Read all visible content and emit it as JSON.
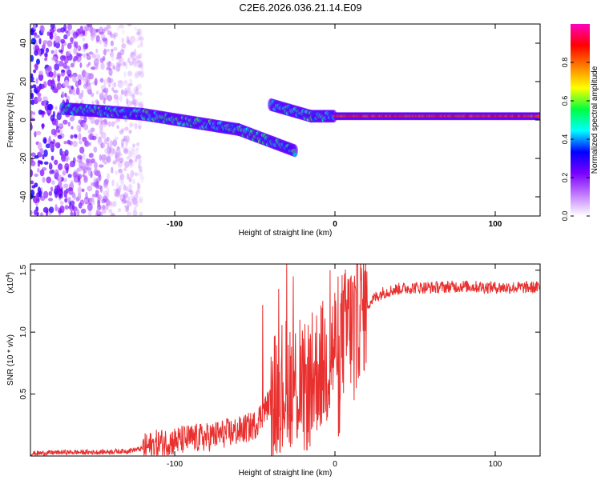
{
  "title": "C2E6.2026.036.21.14.E09",
  "chart_data": [
    {
      "type": "heatmap",
      "xlabel": "Height of straight line (km)",
      "ylabel": "Frequency (Hz)",
      "xlim": [
        -190,
        128
      ],
      "ylim": [
        -50,
        50
      ],
      "xticks": [
        -100,
        0,
        100
      ],
      "yticks": [
        -40,
        -20,
        0,
        20,
        40
      ],
      "colorbar": {
        "label": "Normalized spectral amplitude",
        "range": [
          0,
          1
        ],
        "ticks": [
          "0.0",
          "0.2",
          "0.4",
          "0.6",
          "0.8"
        ],
        "tick_values": [
          0,
          0.2,
          0.4,
          0.6,
          0.8
        ],
        "colors": [
          "#ffffff",
          "#c27bff",
          "#7a00ff",
          "#0000ff",
          "#00ffff",
          "#00ff40",
          "#ffff00",
          "#ff8000",
          "#ff0000",
          "#ff00c0"
        ]
      },
      "ridge": {
        "segments": [
          {
            "x": [
              -170,
              -120
            ],
            "freq": [
              6,
              3
            ]
          },
          {
            "x": [
              -120,
              -60
            ],
            "freq": [
              3,
              -5
            ]
          },
          {
            "x": [
              -60,
              -25
            ],
            "freq": [
              -5,
              -16
            ]
          },
          {
            "x": [
              -40,
              -15
            ],
            "freq": [
              8,
              2
            ]
          },
          {
            "x": [
              -15,
              128
            ],
            "freq": [
              2,
              2
            ]
          }
        ]
      },
      "noise_region_x": [
        -190,
        -120
      ]
    },
    {
      "type": "line",
      "xlabel": "Height of straight line (km)",
      "ylabel": "SNR (10 * v/v)",
      "y_multiplier": "(x10",
      "y_multiplier_exp": "4",
      "y_multiplier_close": ")",
      "xlim": [
        -190,
        128
      ],
      "ylim": [
        0,
        1.55
      ],
      "xticks": [
        -100,
        0,
        100
      ],
      "yticks": [
        0.5,
        1.0,
        1.5
      ],
      "ytick_labels": [
        "0.5",
        "1.0",
        "1.5"
      ],
      "color": "#e8302f",
      "series": [
        {
          "name": "SNR",
          "x": [
            -190,
            -170,
            -150,
            -130,
            -120,
            -110,
            -100,
            -90,
            -80,
            -70,
            -60,
            -50,
            -45,
            -40,
            -35,
            -30,
            -25,
            -20,
            -15,
            -10,
            -5,
            0,
            5,
            10,
            15,
            20,
            25,
            30,
            40,
            50,
            60,
            80,
            100,
            128
          ],
          "y": [
            0.02,
            0.03,
            0.03,
            0.04,
            0.06,
            0.1,
            0.12,
            0.14,
            0.15,
            0.18,
            0.2,
            0.25,
            0.35,
            0.45,
            0.55,
            0.6,
            0.6,
            0.5,
            0.62,
            0.72,
            0.75,
            0.9,
            0.98,
            1.05,
            1.15,
            1.22,
            1.28,
            1.32,
            1.35,
            1.36,
            1.36,
            1.37,
            1.36,
            1.36
          ]
        }
      ],
      "spikes": [
        {
          "x": -45,
          "y": 1.22
        },
        {
          "x": -35,
          "y": 1.35
        },
        {
          "x": -30,
          "y": 1.55
        },
        {
          "x": -26,
          "y": 1.45
        },
        {
          "x": -22,
          "y": 1.1
        },
        {
          "x": -3,
          "y": 1.5
        },
        {
          "x": 8,
          "y": 1.43
        },
        {
          "x": 12,
          "y": 0.45
        }
      ]
    }
  ]
}
